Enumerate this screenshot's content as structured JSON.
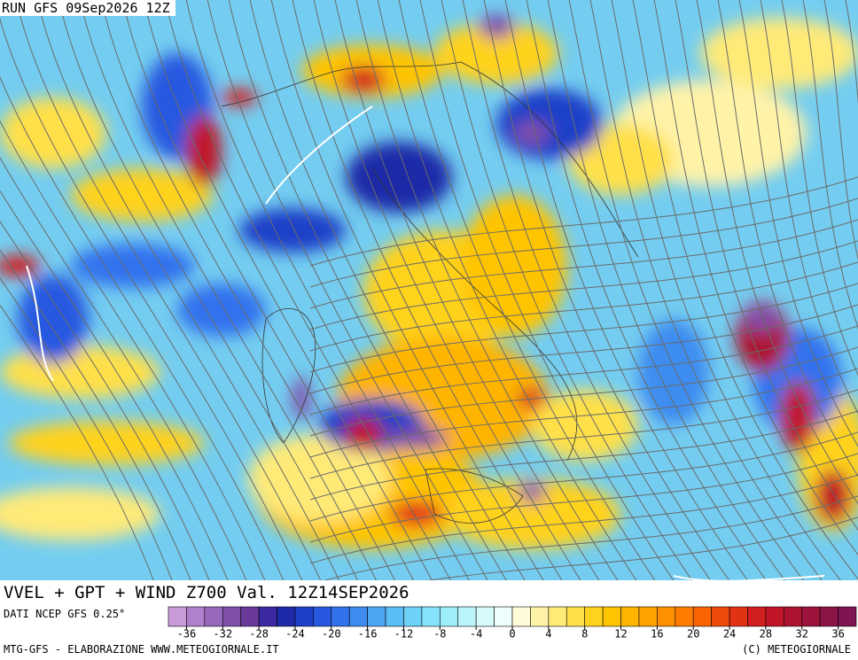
{
  "header": {
    "run": "RUN GFS 09Sep2026 12Z"
  },
  "title": "VVEL + GPT + WIND Z700 Val. 12Z14SEP2026",
  "source": "DATI NCEP GFS 0.25°",
  "colorbar": {
    "range": [
      -38,
      38
    ],
    "ticks": [
      -36,
      -32,
      -28,
      -24,
      -20,
      -16,
      -12,
      -8,
      -4,
      0,
      4,
      8,
      12,
      16,
      20,
      24,
      28,
      32,
      36
    ],
    "colors": [
      "#c89ad8",
      "#b080cc",
      "#9868bc",
      "#8050aa",
      "#6a3a9a",
      "#3c28a0",
      "#1e2aa8",
      "#1e40c8",
      "#2858e0",
      "#3272ee",
      "#3e8cf0",
      "#4aa6f2",
      "#5abef6",
      "#6ed2f8",
      "#84e2fa",
      "#9eeefa",
      "#baf4fa",
      "#d6fafa",
      "#eefdfd",
      "#fffbd8",
      "#fff3a8",
      "#ffea78",
      "#ffe04a",
      "#ffd21e",
      "#ffc400",
      "#ffb400",
      "#ffa200",
      "#ff9000",
      "#ff7c00",
      "#f86400",
      "#ee4a0a",
      "#e23214",
      "#d21e1e",
      "#c01428",
      "#ae1432",
      "#9c143c",
      "#8c1446",
      "#7e1450"
    ]
  },
  "footer": {
    "left": "MTG-GFS - ELABORAZIONE WWW.METEOGIORNALE.IT",
    "right": "(C) METEOGIORNALE"
  }
}
